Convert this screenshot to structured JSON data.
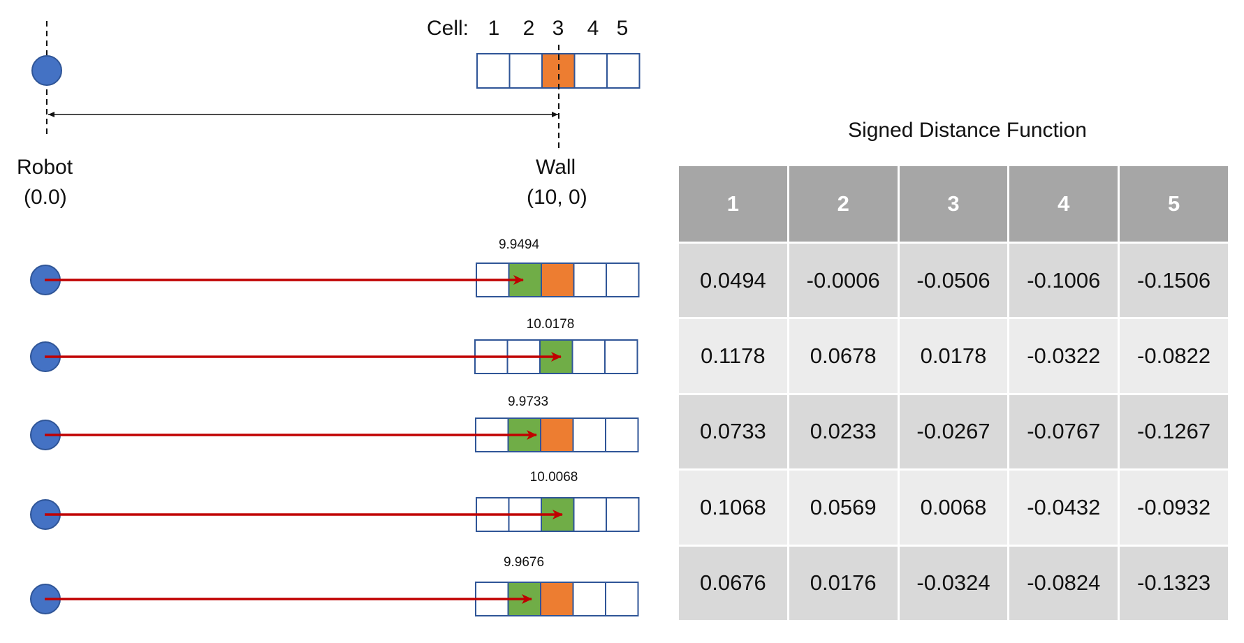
{
  "top_diagram": {
    "cell_label": "Cell:",
    "cell_numbers": [
      "1",
      "2",
      "3",
      "4",
      "5"
    ],
    "robot_label": "Robot",
    "robot_coords": "(0.0)",
    "wall_label": "Wall",
    "wall_coords": "(10, 0)",
    "highlighted_cell": 3
  },
  "rays": [
    {
      "distance_label": "9.9494",
      "green_cell": 2,
      "orange_cell": 3
    },
    {
      "distance_label": "10.0178",
      "green_cell": 3,
      "orange_cell": null
    },
    {
      "distance_label": "9.9733",
      "green_cell": 2,
      "orange_cell": 3
    },
    {
      "distance_label": "10.0068",
      "green_cell": 3,
      "orange_cell": null
    },
    {
      "distance_label": "9.9676",
      "green_cell": 2,
      "orange_cell": 3
    }
  ],
  "table": {
    "title": "Signed Distance Function",
    "headers": [
      "1",
      "2",
      "3",
      "4",
      "5"
    ],
    "rows": [
      [
        "0.0494",
        "-0.0006",
        "-0.0506",
        "-0.1006",
        "-0.1506"
      ],
      [
        "0.1178",
        "0.0678",
        "0.0178",
        "-0.0322",
        "-0.0822"
      ],
      [
        "0.0733",
        "0.0233",
        "-0.0267",
        "-0.0767",
        "-0.1267"
      ],
      [
        "0.1068",
        "0.0569",
        "0.0068",
        "-0.0432",
        "-0.0932"
      ],
      [
        "0.0676",
        "0.0176",
        "-0.0324",
        "-0.0824",
        "-0.1323"
      ]
    ]
  },
  "colors": {
    "robot": "#4472c4",
    "robot_stroke": "#2f5597",
    "cell_border": "#2f5597",
    "green": "#70ad47",
    "orange": "#ed7d31",
    "ray": "#c00000",
    "table_header": "#a6a6a6",
    "table_row_odd": "#d9d9d9",
    "table_row_even": "#ececec"
  }
}
